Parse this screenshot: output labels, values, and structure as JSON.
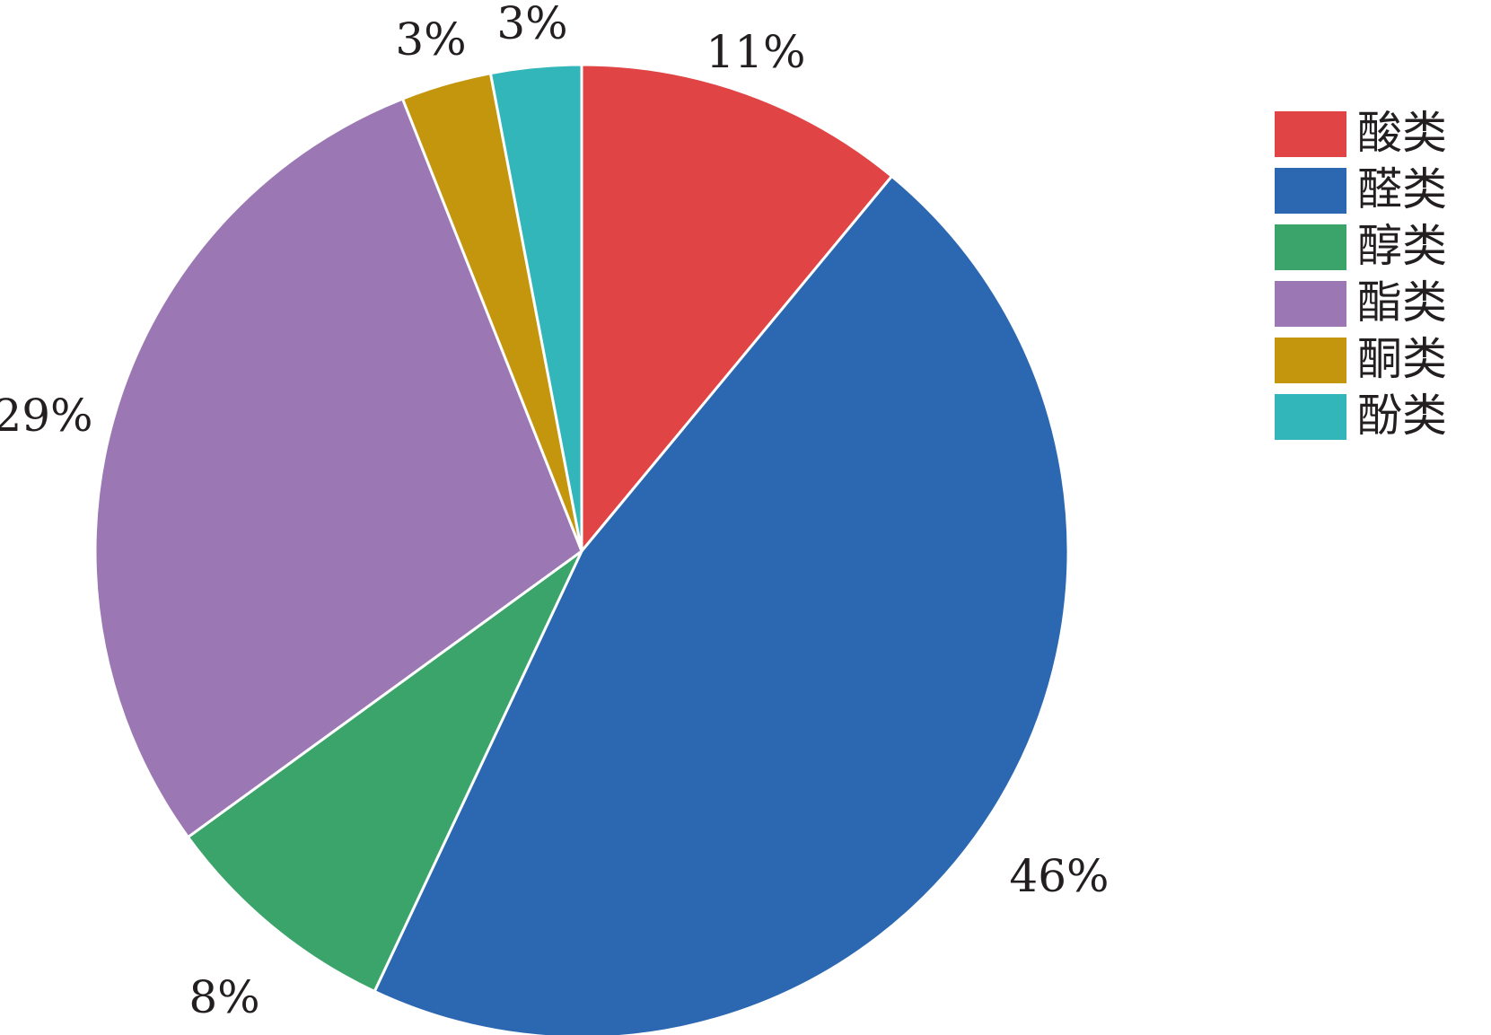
{
  "chart_data": {
    "type": "pie",
    "title": "",
    "categories": [
      "酸类",
      "醛类",
      "醇类",
      "酯类",
      "酮类",
      "酚类"
    ],
    "values": [
      11,
      46,
      8,
      29,
      3,
      3
    ],
    "labels": [
      "11%",
      "46%",
      "8%",
      "29%",
      "3%",
      "3%"
    ],
    "colors": [
      "#e04444",
      "#2c68b2",
      "#3aa46a",
      "#9b78b3",
      "#c4960e",
      "#32b6ba"
    ],
    "start_angle": "12 o'clock",
    "direction": "clockwise",
    "legend_position": "top-right"
  }
}
